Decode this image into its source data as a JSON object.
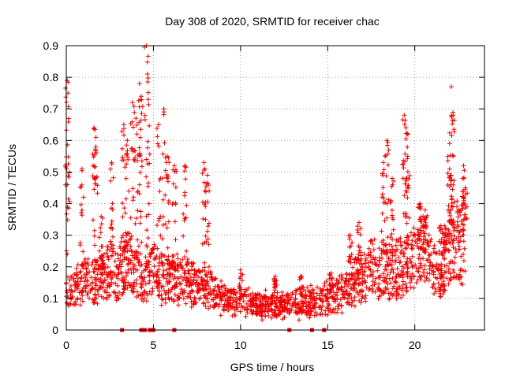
{
  "chart_data": {
    "type": "scatter",
    "title": "Day 308 of 2020, SRMTID for receiver chac",
    "xlabel": "GPS time / hours",
    "ylabel": "SRMTID / TECUs",
    "xlim": [
      0,
      24
    ],
    "ylim": [
      0,
      0.9
    ],
    "xticks": [
      0,
      5,
      10,
      15,
      20
    ],
    "xtick_labels": [
      "0",
      "5",
      "10",
      "15",
      "20"
    ],
    "yticks": [
      0,
      0.1,
      0.2,
      0.3,
      0.4,
      0.5,
      0.6,
      0.7,
      0.8,
      0.9
    ],
    "ytick_labels": [
      "0",
      "0.1",
      "0.2",
      "0.3",
      "0.4",
      "0.5",
      "0.6",
      "0.7",
      "0.8",
      "0.9"
    ],
    "grid": true,
    "marker": "plus",
    "color": "#ee0000",
    "x_range_end": 22.9,
    "baseline_profile": [
      [
        0.0,
        0.11
      ],
      [
        0.5,
        0.12
      ],
      [
        1.0,
        0.17
      ],
      [
        1.5,
        0.15
      ],
      [
        2.0,
        0.17
      ],
      [
        2.5,
        0.2
      ],
      [
        3.0,
        0.18
      ],
      [
        3.5,
        0.22
      ],
      [
        4.0,
        0.18
      ],
      [
        4.5,
        0.17
      ],
      [
        5.0,
        0.19
      ],
      [
        5.5,
        0.16
      ],
      [
        6.0,
        0.16
      ],
      [
        6.5,
        0.16
      ],
      [
        7.0,
        0.15
      ],
      [
        7.5,
        0.14
      ],
      [
        8.0,
        0.15
      ],
      [
        8.5,
        0.11
      ],
      [
        9.0,
        0.095
      ],
      [
        10.0,
        0.085
      ],
      [
        11.0,
        0.082
      ],
      [
        12.0,
        0.078
      ],
      [
        13.0,
        0.078
      ],
      [
        14.0,
        0.09
      ],
      [
        15.0,
        0.1
      ],
      [
        16.0,
        0.12
      ],
      [
        16.5,
        0.15
      ],
      [
        17.0,
        0.18
      ],
      [
        17.5,
        0.2
      ],
      [
        18.0,
        0.19
      ],
      [
        18.5,
        0.2
      ],
      [
        19.0,
        0.19
      ],
      [
        19.5,
        0.21
      ],
      [
        20.0,
        0.22
      ],
      [
        20.5,
        0.25
      ],
      [
        21.0,
        0.19
      ],
      [
        21.5,
        0.17
      ],
      [
        22.0,
        0.28
      ],
      [
        22.5,
        0.28
      ],
      [
        22.9,
        0.27
      ]
    ],
    "peaks": [
      {
        "x": 0.05,
        "y": 0.79
      },
      {
        "x": 0.1,
        "y": 0.75
      },
      {
        "x": 0.9,
        "y": 0.51
      },
      {
        "x": 1.6,
        "y": 0.64
      },
      {
        "x": 1.7,
        "y": 0.58
      },
      {
        "x": 2.0,
        "y": 0.36
      },
      {
        "x": 2.6,
        "y": 0.53
      },
      {
        "x": 3.3,
        "y": 0.65
      },
      {
        "x": 3.5,
        "y": 0.6
      },
      {
        "x": 3.8,
        "y": 0.72
      },
      {
        "x": 4.0,
        "y": 0.67
      },
      {
        "x": 4.2,
        "y": 0.78
      },
      {
        "x": 4.3,
        "y": 0.74
      },
      {
        "x": 4.6,
        "y": 0.9
      },
      {
        "x": 4.7,
        "y": 0.73
      },
      {
        "x": 5.3,
        "y": 0.65
      },
      {
        "x": 5.6,
        "y": 0.7
      },
      {
        "x": 5.8,
        "y": 0.55
      },
      {
        "x": 6.2,
        "y": 0.52
      },
      {
        "x": 6.8,
        "y": 0.52
      },
      {
        "x": 7.9,
        "y": 0.53
      },
      {
        "x": 8.1,
        "y": 0.49
      },
      {
        "x": 10.0,
        "y": 0.19
      },
      {
        "x": 12.0,
        "y": 0.17
      },
      {
        "x": 13.5,
        "y": 0.17
      },
      {
        "x": 15.2,
        "y": 0.18
      },
      {
        "x": 16.3,
        "y": 0.3
      },
      {
        "x": 16.8,
        "y": 0.34
      },
      {
        "x": 18.2,
        "y": 0.53
      },
      {
        "x": 18.4,
        "y": 0.6
      },
      {
        "x": 18.7,
        "y": 0.48
      },
      {
        "x": 19.4,
        "y": 0.68
      },
      {
        "x": 19.5,
        "y": 0.64
      },
      {
        "x": 19.6,
        "y": 0.55
      },
      {
        "x": 20.3,
        "y": 0.4
      },
      {
        "x": 20.6,
        "y": 0.38
      },
      {
        "x": 21.5,
        "y": 0.33
      },
      {
        "x": 21.7,
        "y": 0.33
      },
      {
        "x": 22.0,
        "y": 0.59
      },
      {
        "x": 22.1,
        "y": 0.77
      },
      {
        "x": 22.2,
        "y": 0.68
      },
      {
        "x": 22.8,
        "y": 0.52
      },
      {
        "x": 22.9,
        "y": 0.45
      }
    ],
    "zero_value_markers": [
      3.2,
      4.3,
      4.5,
      4.8,
      5.0,
      6.2,
      12.8,
      14.1,
      14.8
    ]
  }
}
